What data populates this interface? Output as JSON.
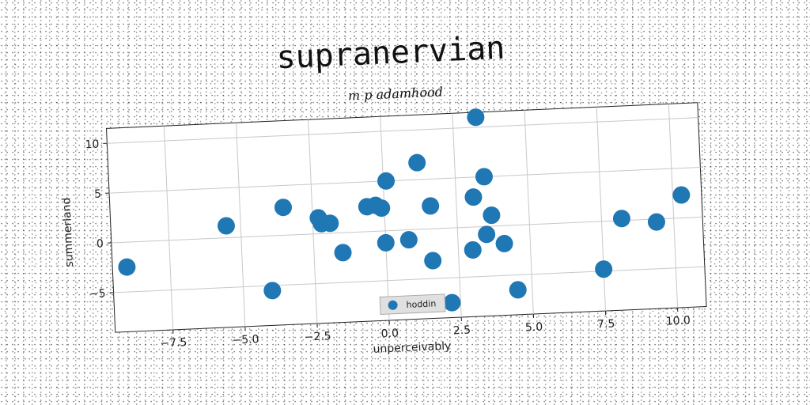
{
  "title": "supranervian",
  "subtitle": "m p adamhood",
  "chart_data": {
    "type": "scatter",
    "xlabel": "unperceivably",
    "ylabel": "summerland",
    "xlim": [
      -9.5,
      11
    ],
    "ylim": [
      -9,
      11.5
    ],
    "x_ticks": [
      -7.5,
      -5.0,
      -2.5,
      0.0,
      2.5,
      5.0,
      7.5,
      10.0
    ],
    "x_tick_labels": [
      "−7.5",
      "−5.0",
      "−2.5",
      "0.0",
      "2.5",
      "5.0",
      "7.5",
      "10.0"
    ],
    "y_ticks": [
      -5,
      0,
      5,
      10
    ],
    "y_tick_labels": [
      "−5",
      "0",
      "5",
      "10"
    ],
    "grid": true,
    "legend_position": "bottom-center",
    "series": [
      {
        "name": "hoddin",
        "color": "#1f77b4",
        "points": [
          {
            "x": -9.0,
            "y": -2.5
          },
          {
            "x": -5.5,
            "y": 1.2
          },
          {
            "x": -4.0,
            "y": -5.5
          },
          {
            "x": -3.5,
            "y": 2.8
          },
          {
            "x": -2.3,
            "y": 1.6
          },
          {
            "x": -2.2,
            "y": 1.0
          },
          {
            "x": -1.9,
            "y": 1.0
          },
          {
            "x": -1.5,
            "y": -2.0
          },
          {
            "x": -0.6,
            "y": 2.5
          },
          {
            "x": -0.3,
            "y": 2.6
          },
          {
            "x": -0.1,
            "y": 2.3
          },
          {
            "x": 0.0,
            "y": -1.2
          },
          {
            "x": 0.1,
            "y": 5.0
          },
          {
            "x": 0.8,
            "y": -1.0
          },
          {
            "x": 1.2,
            "y": 6.7
          },
          {
            "x": 1.6,
            "y": 2.3
          },
          {
            "x": 1.6,
            "y": -3.2
          },
          {
            "x": 2.2,
            "y": -7.5
          },
          {
            "x": 3.0,
            "y": -2.3
          },
          {
            "x": 3.1,
            "y": 3.0
          },
          {
            "x": 3.3,
            "y": 11.0
          },
          {
            "x": 3.5,
            "y": 5.0
          },
          {
            "x": 3.5,
            "y": -0.8
          },
          {
            "x": 3.7,
            "y": 1.1
          },
          {
            "x": 4.1,
            "y": -1.8
          },
          {
            "x": 4.5,
            "y": -6.5
          },
          {
            "x": 7.5,
            "y": -4.8
          },
          {
            "x": 8.2,
            "y": 0.2
          },
          {
            "x": 9.4,
            "y": -0.3
          },
          {
            "x": 10.3,
            "y": 2.3
          }
        ]
      }
    ]
  }
}
